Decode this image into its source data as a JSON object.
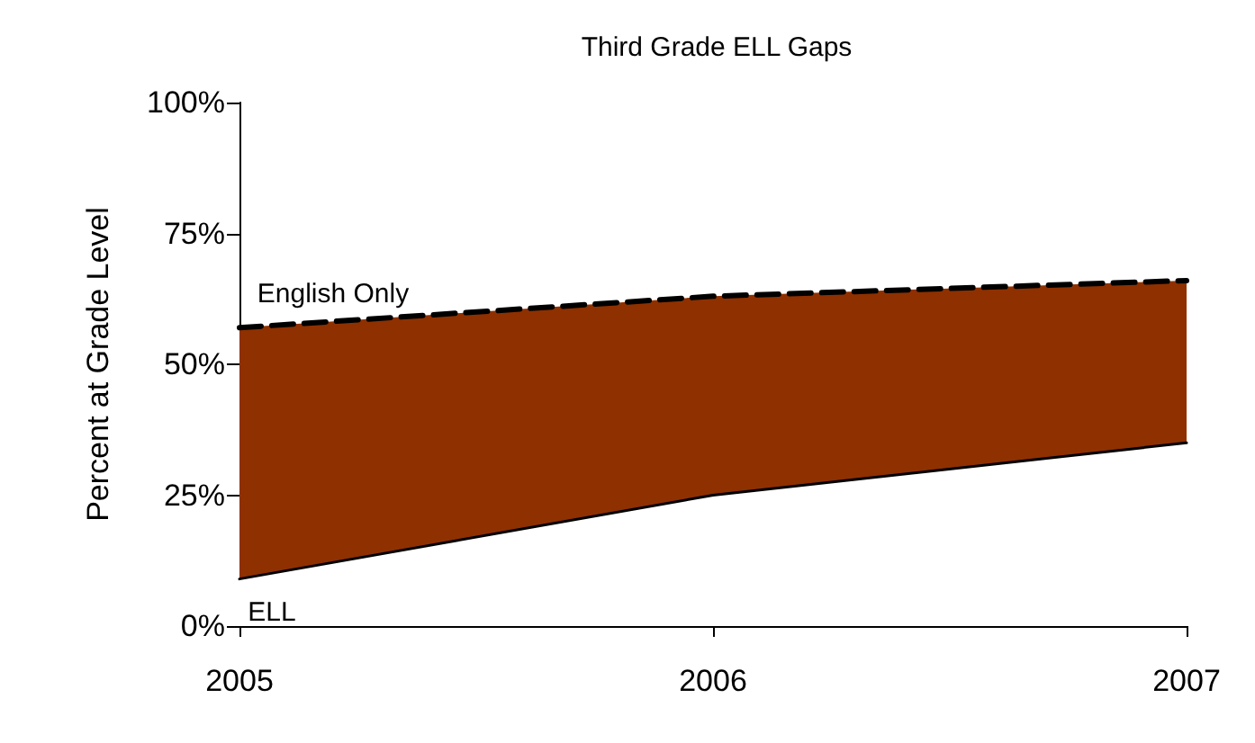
{
  "chart_data": {
    "type": "area",
    "title": "Third Grade ELL Gaps",
    "ylabel": "Percent at Grade Level",
    "categories": [
      "2005",
      "2006",
      "2007"
    ],
    "series": [
      {
        "name": "English Only",
        "color": "#8f3000",
        "values": [
          57,
          63,
          66
        ],
        "line_style": "dashed"
      },
      {
        "name": "ELL",
        "color": "#ffffff",
        "values": [
          9,
          25,
          35
        ],
        "line_style": "solid"
      }
    ],
    "ylim": [
      0,
      100
    ],
    "yticks": [
      {
        "value": 0,
        "label": "0%"
      },
      {
        "value": 25,
        "label": "25%"
      },
      {
        "value": 50,
        "label": "50%"
      },
      {
        "value": 75,
        "label": "75%"
      },
      {
        "value": 100,
        "label": "100%"
      }
    ],
    "grid": false,
    "legend": false,
    "marker": "none"
  }
}
